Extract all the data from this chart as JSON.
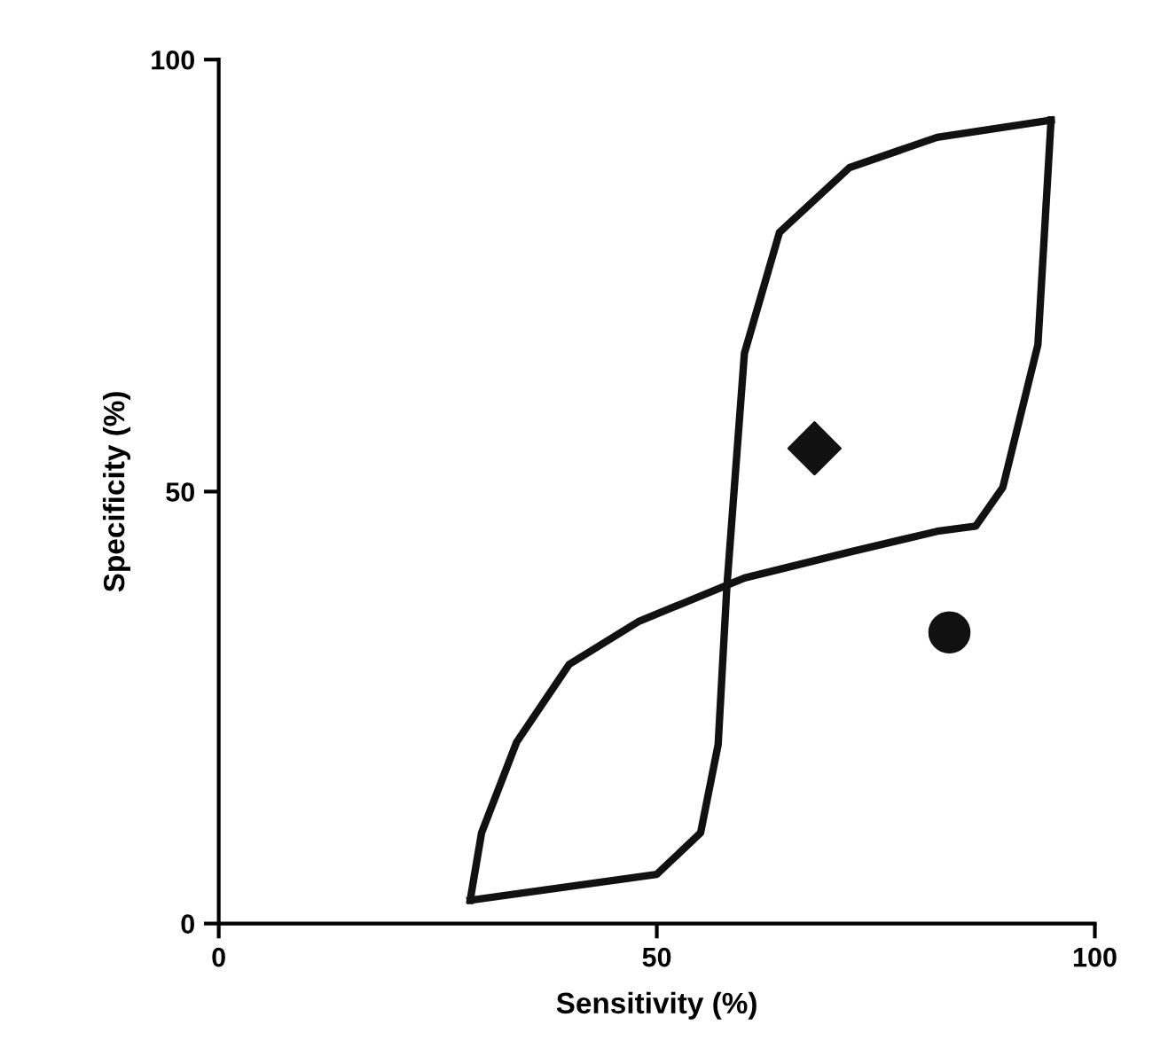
{
  "chart_data": {
    "type": "line",
    "xlabel": "Sensitivity (%)",
    "ylabel": "Specificity (%)",
    "xlim": [
      0,
      100
    ],
    "ylim": [
      0,
      100
    ],
    "xticks": [
      0,
      50,
      100
    ],
    "yticks": [
      0,
      50,
      100
    ],
    "grid": false,
    "legend": false,
    "series": [
      {
        "color": "#111111",
        "marker": "none",
        "line_style": "solid",
        "x": [
          28.7,
          50,
          55,
          57,
          58,
          60,
          64,
          72,
          82,
          95
        ],
        "values": [
          2.7,
          5.7,
          10.5,
          20.7,
          39,
          66,
          80,
          87.5,
          91,
          93
        ]
      },
      {
        "color": "#111111",
        "marker": "none",
        "line_style": "solid",
        "x": [
          28.7,
          30,
          34,
          40,
          48,
          60,
          72,
          82,
          86.4,
          89.5,
          93.5,
          95
        ],
        "values": [
          2.7,
          10.5,
          21,
          30,
          35,
          40,
          43,
          45.4,
          46,
          50.5,
          67,
          93
        ]
      },
      {
        "type": "scatter",
        "color": "#111111",
        "marker": "diamond",
        "x": [
          68
        ],
        "values": [
          55
        ]
      },
      {
        "type": "scatter",
        "color": "#111111",
        "marker": "circle",
        "x": [
          83.4
        ],
        "values": [
          33.7
        ]
      }
    ]
  }
}
